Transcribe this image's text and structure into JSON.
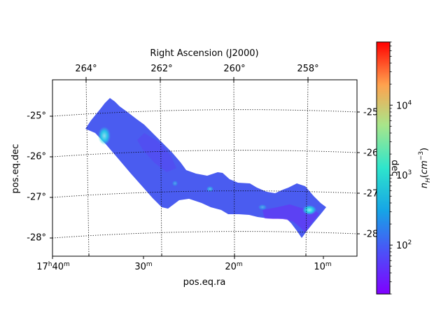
{
  "chart_data": {
    "type": "heatmap",
    "title": "",
    "projection": "sky map, equatorial coordinates",
    "xlabel": "pos.eq.ra",
    "ylabel": "pos.eq.dec",
    "top_label": "Right Ascension (J2000)",
    "right_label": "dec",
    "colorbar": {
      "label": "n_H(cm^-3)",
      "scale": "log",
      "range": [
        20,
        80000
      ],
      "colormap": "rainbow",
      "ticks": [
        {
          "value": 100,
          "base": "10",
          "exp": "2"
        },
        {
          "value": 1000,
          "base": "10",
          "exp": "3"
        },
        {
          "value": 10000,
          "base": "10",
          "exp": "4"
        }
      ]
    },
    "bottom_ticks": [
      {
        "h": "17",
        "hs": "h",
        "m": "40",
        "ms": "m"
      },
      {
        "h": "",
        "hs": "",
        "m": "30",
        "ms": "m"
      },
      {
        "h": "",
        "hs": "",
        "m": "20",
        "ms": "m"
      },
      {
        "h": "",
        "hs": "",
        "m": "10",
        "ms": "m"
      }
    ],
    "top_ticks": [
      "264°",
      "262°",
      "260°",
      "258°"
    ],
    "left_ticks": [
      "-25°",
      "-26°",
      "-27°",
      "-28°"
    ],
    "right_ticks": [
      "-25",
      "-26",
      "-27",
      "-28"
    ],
    "grid": true,
    "grid_style": "dotted",
    "map_colors": {
      "dominant": "#4a5cf0",
      "low": "#6b2bf5",
      "bright": "#22d8e6"
    }
  }
}
